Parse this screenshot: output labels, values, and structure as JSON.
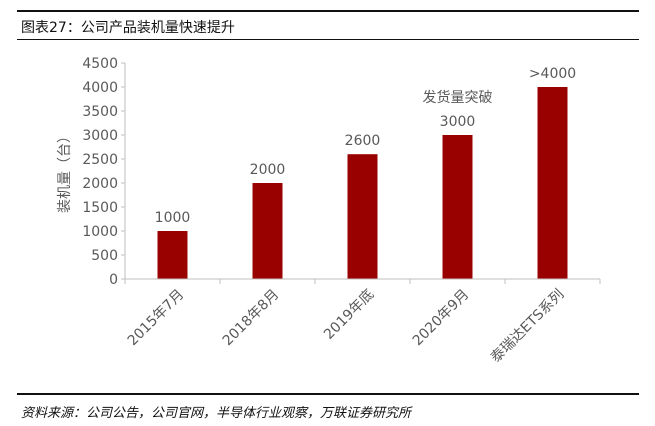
{
  "header": {
    "title": "图表27：公司产品装机量快速提升"
  },
  "footer": {
    "source": "资料来源：公司公告，公司官网，半导体行业观察，万联证券研究所"
  },
  "chart_data": {
    "type": "bar",
    "categories": [
      "2015年7月",
      "2018年8月",
      "2019年底",
      "2020年9月",
      "泰瑞达ETS系列"
    ],
    "values": [
      1000,
      2000,
      2600,
      3000,
      4000
    ],
    "data_labels": [
      "1000",
      "2000",
      "2600",
      "3000",
      ">4000"
    ],
    "annotation": "发货量突破",
    "ylabel": "装机量（台）",
    "ylim": [
      0,
      4500
    ],
    "yticks": [
      0,
      500,
      1000,
      1500,
      2000,
      2500,
      3000,
      3500,
      4000,
      4500
    ],
    "grid": false,
    "colors": {
      "bar": "#990000",
      "axis": "#bfbfbf",
      "text": "#595959"
    }
  }
}
